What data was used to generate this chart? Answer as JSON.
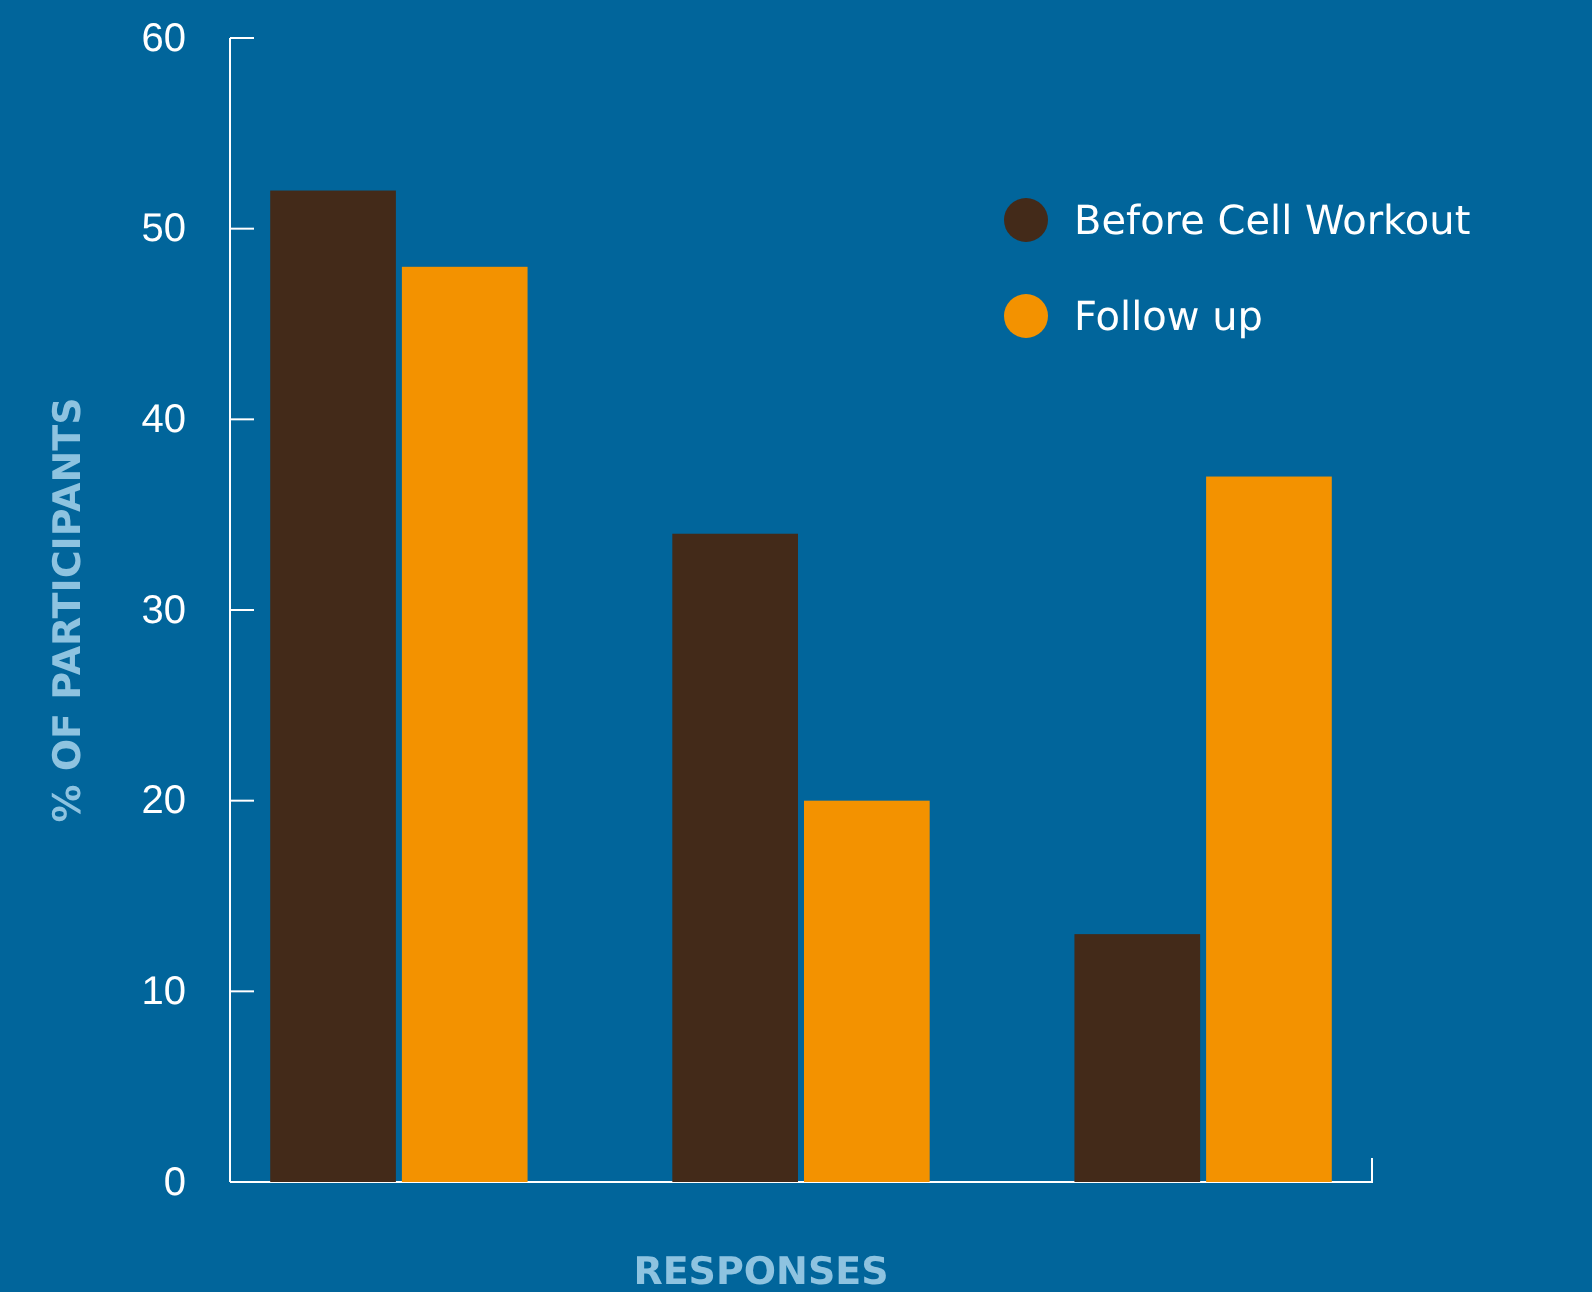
{
  "chart_data": {
    "type": "bar",
    "xlabel": "RESPONSES",
    "ylabel": "% OF PARTICIPANTS",
    "categories": [
      null,
      null,
      null
    ],
    "series": [
      {
        "name": "Before Cell Workout",
        "color": "#432a19",
        "values": [
          52,
          34,
          13
        ]
      },
      {
        "name": "Follow up",
        "color": "#f39200",
        "values": [
          48,
          20,
          37
        ]
      }
    ],
    "ylim": [
      0,
      60
    ],
    "yticks": [
      0,
      10,
      20,
      30,
      40,
      50,
      60
    ],
    "legend": "top right"
  }
}
